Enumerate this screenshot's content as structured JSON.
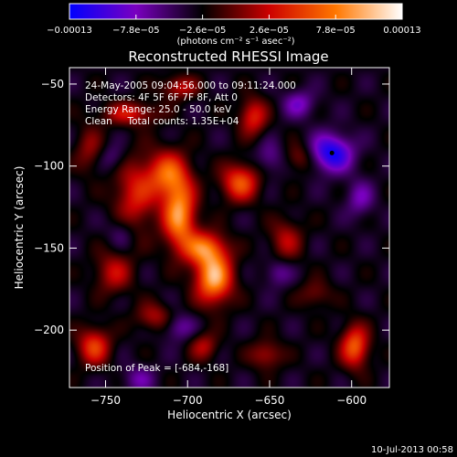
{
  "chart_data": {
    "type": "heatmap",
    "title": "Reconstructed RHESSI Image",
    "xlabel": "Heliocentric X (arcsec)",
    "ylabel": "Heliocentric Y (arcsec)",
    "xlim": [
      -772,
      -577
    ],
    "ylim": [
      -235,
      -40
    ],
    "xticks": [
      -750,
      -700,
      -650,
      -600
    ],
    "yticks": [
      -50,
      -100,
      -150,
      -200
    ],
    "xtick_labels": [
      "−750",
      "−700",
      "−650",
      "−600"
    ],
    "ytick_labels": [
      "−50",
      "−100",
      "−150",
      "−200"
    ],
    "colorbar": {
      "range": [
        -0.00013,
        0.00013
      ],
      "tick_values": [
        -0.00013,
        -7.8e-05,
        -2.6e-05,
        2.6e-05,
        7.8e-05,
        0.00013
      ],
      "tick_labels": [
        "−0.00013",
        "−7.8e−05",
        "−2.6e−05",
        "2.6e−05",
        "7.8e−05",
        "0.00013"
      ],
      "units_label": "(photons cm⁻² s⁻¹ asec⁻²)",
      "colors": [
        "#0000ff",
        "#7a00c0",
        "#000000",
        "#cc0000",
        "#ff7700",
        "#ffffff"
      ]
    },
    "annotations": [
      "24-May-2005 09:04:56.000 to 09:11:24.000",
      "Detectors: 4F 5F 6F 7F 8F, Att 0",
      "Energy Range: 25.0 - 50.0 keV",
      "Clean     Total counts: 1.35E+04"
    ],
    "peak_label": "Position of Peak = [-684,-168]",
    "peak": [
      -684,
      -168
    ],
    "sources": [
      {
        "x": -705,
        "y": -130,
        "sx": 7,
        "sy": 14,
        "value": 0.00012
      },
      {
        "x": -712,
        "y": -105,
        "sx": 9,
        "sy": 10,
        "value": 9e-05
      },
      {
        "x": -684,
        "y": -168,
        "sx": 8,
        "sy": 11,
        "value": 0.00013
      },
      {
        "x": -690,
        "y": -150,
        "sx": 9,
        "sy": 7,
        "value": 9e-05
      },
      {
        "x": -668,
        "y": -110,
        "sx": 8,
        "sy": 8,
        "value": 9e-05
      },
      {
        "x": -660,
        "y": -70,
        "sx": 6,
        "sy": 8,
        "value": 7e-05
      },
      {
        "x": -732,
        "y": -118,
        "sx": 9,
        "sy": 16,
        "value": 6.5e-05
      },
      {
        "x": -745,
        "y": -165,
        "sx": 8,
        "sy": 9,
        "value": 5.5e-05
      },
      {
        "x": -735,
        "y": -68,
        "sx": 12,
        "sy": 5,
        "value": 6e-05
      },
      {
        "x": -705,
        "y": -52,
        "sx": 8,
        "sy": 5,
        "value": 5.5e-05
      },
      {
        "x": -757,
        "y": -210,
        "sx": 7,
        "sy": 8,
        "value": 8e-05
      },
      {
        "x": -720,
        "y": -192,
        "sx": 8,
        "sy": 6,
        "value": 5e-05
      },
      {
        "x": -690,
        "y": -210,
        "sx": 6,
        "sy": 6,
        "value": 5e-05
      },
      {
        "x": -640,
        "y": -145,
        "sx": 7,
        "sy": 9,
        "value": 5e-05
      },
      {
        "x": -632,
        "y": -95,
        "sx": 6,
        "sy": 6,
        "value": 4e-05
      },
      {
        "x": -598,
        "y": -210,
        "sx": 6,
        "sy": 9,
        "value": 9.5e-05
      },
      {
        "x": -652,
        "y": -215,
        "sx": 7,
        "sy": 6,
        "value": 5e-05
      },
      {
        "x": -622,
        "y": -178,
        "sx": 7,
        "sy": 6,
        "value": 3.5e-05
      },
      {
        "x": -760,
        "y": -90,
        "sx": 6,
        "sy": 10,
        "value": 4e-05
      },
      {
        "x": -612,
        "y": -92,
        "sx": 9,
        "sy": 8,
        "value": -9e-05
      },
      {
        "x": -632,
        "y": -62,
        "sx": 7,
        "sy": 6,
        "value": -4.5e-05
      },
      {
        "x": -595,
        "y": -120,
        "sx": 6,
        "sy": 8,
        "value": -4e-05
      },
      {
        "x": -650,
        "y": -95,
        "sx": 6,
        "sy": 7,
        "value": -3.5e-05
      },
      {
        "x": -645,
        "y": -165,
        "sx": 6,
        "sy": 6,
        "value": -3.5e-05
      },
      {
        "x": -740,
        "y": -140,
        "sx": 6,
        "sy": 7,
        "value": -3e-05
      },
      {
        "x": -706,
        "y": -198,
        "sx": 7,
        "sy": 6,
        "value": -4e-05
      },
      {
        "x": -745,
        "y": -95,
        "sx": 6,
        "sy": 6,
        "value": -3e-05
      },
      {
        "x": -730,
        "y": -230,
        "sx": 7,
        "sy": 6,
        "value": -3.5e-05
      }
    ]
  },
  "footer": {
    "timestamp": "10-Jul-2013 00:58"
  }
}
